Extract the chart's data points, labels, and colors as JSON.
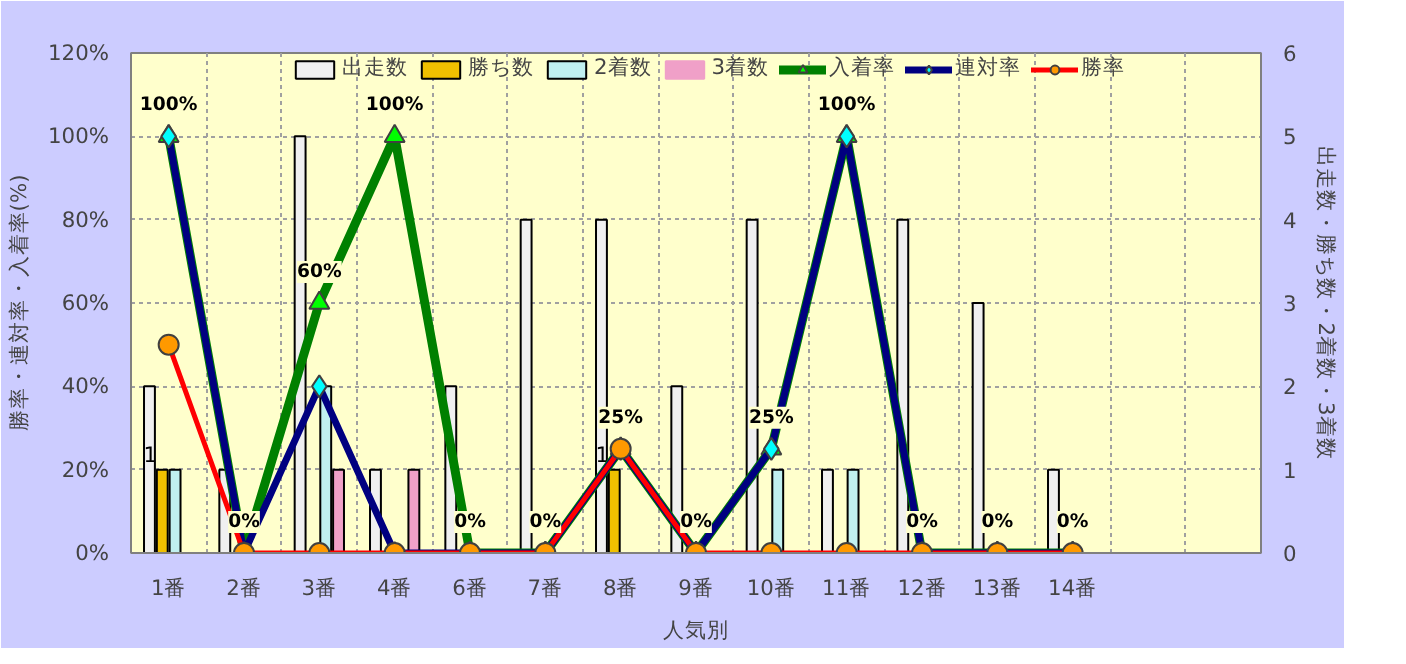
{
  "chart_data": {
    "type": "bar",
    "xlabel": "人気別",
    "ylabel": "勝率・連対率・入着率(%)",
    "y2label": "出走数・勝ち数・2着数・3着数",
    "categories": [
      "1番",
      "2番",
      "3番",
      "4番",
      "6番",
      "7番",
      "8番",
      "9番",
      "10番",
      "11番",
      "12番",
      "13番",
      "14番",
      null,
      null
    ],
    "series": [
      {
        "name": "出走数",
        "axis": "y2",
        "color": "#f0f0f0",
        "values": [
          2,
          1,
          5,
          1,
          2,
          4,
          4,
          2,
          4,
          1,
          4,
          3,
          1,
          null,
          null
        ]
      },
      {
        "name": "勝ち数",
        "axis": "y2",
        "color": "#f0c000",
        "values": [
          1,
          0,
          0,
          0,
          0,
          0,
          1,
          0,
          0,
          0,
          0,
          0,
          0,
          null,
          null
        ],
        "value_labels": [
          "1",
          null,
          null,
          null,
          null,
          null,
          "1",
          null,
          null,
          null,
          null,
          null,
          null,
          null,
          null
        ]
      },
      {
        "name": "2着数",
        "axis": "y2",
        "color": "#c0f0f0",
        "values": [
          1,
          0,
          2,
          0,
          0,
          0,
          0,
          0,
          1,
          1,
          0,
          0,
          0,
          null,
          null
        ]
      },
      {
        "name": "3着数",
        "axis": "y2",
        "color": "#f0a0c8",
        "values": [
          0,
          0,
          1,
          1,
          0,
          0,
          0,
          0,
          0,
          0,
          0,
          0,
          0,
          null,
          null
        ]
      },
      {
        "name": "入着率",
        "type": "line",
        "color": "#008000",
        "marker": "triangle",
        "values": [
          100,
          0,
          60,
          100,
          0,
          0,
          25,
          0,
          25,
          100,
          0,
          0,
          0,
          null,
          null
        ],
        "value_labels": [
          "100%",
          "0%",
          "60%",
          "100%",
          "0%",
          "0%",
          "25%",
          "0%",
          "25%",
          "100%",
          "0%",
          "0%",
          "0%",
          null,
          null
        ]
      },
      {
        "name": "連対率",
        "type": "line",
        "color": "#000080",
        "marker": "diamond",
        "values": [
          100,
          0,
          40,
          0,
          0,
          0,
          25,
          0,
          25,
          100,
          0,
          0,
          0,
          null,
          null
        ]
      },
      {
        "name": "勝率",
        "type": "line",
        "color": "#ff0000",
        "marker": "circle",
        "values": [
          50,
          0,
          0,
          0,
          0,
          0,
          25,
          0,
          0,
          0,
          0,
          0,
          0,
          null,
          null
        ]
      }
    ],
    "ylim": [
      0,
      120
    ],
    "yticks": [
      {
        "value": 0,
        "label": "0%"
      },
      {
        "value": 20,
        "label": "20%"
      },
      {
        "value": 40,
        "label": "40%"
      },
      {
        "value": 60,
        "label": "60%"
      },
      {
        "value": 80,
        "label": "80%"
      },
      {
        "value": 100,
        "label": "100%"
      },
      {
        "value": 120,
        "label": "120%"
      }
    ],
    "y2lim": [
      0,
      6
    ],
    "y2ticks": [
      0,
      1,
      2,
      3,
      4,
      5,
      6
    ],
    "grid": true,
    "legend": "top"
  }
}
